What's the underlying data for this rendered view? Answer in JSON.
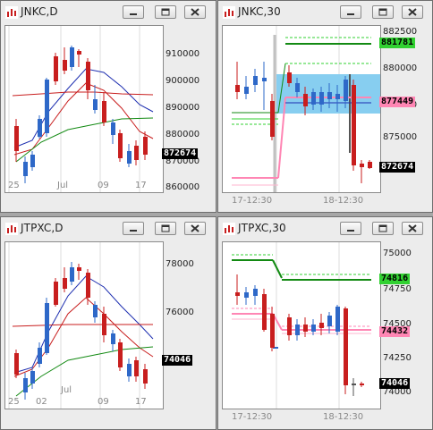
{
  "colors": {
    "bull": "#2e68c8",
    "bear": "#c81e1e",
    "wbg": "#ececec",
    "sma_red": "#c81e1e",
    "sma_blue": "#1e2fb0",
    "sma_green": "#138a13",
    "tag_green": "#31d131",
    "tag_pink": "#ff86b4",
    "tag_black": "#000000",
    "box": "#87cef0"
  },
  "buttons": {
    "minimize_icon": "minimize-icon",
    "restore_icon": "restore-icon",
    "close_icon": "close-icon"
  },
  "windows": [
    {
      "title": "JNKC,D",
      "ticks": [
        "910000",
        "900000",
        "890000",
        "880000",
        "870000",
        "860000"
      ],
      "xlabels": [
        "25",
        "Jul",
        "09",
        "17"
      ],
      "tags": [
        {
          "text": "872674",
          "color": "black"
        }
      ]
    },
    {
      "title": "JNKC,30",
      "ticks": [
        "882500",
        "880000",
        "877500",
        "875000"
      ],
      "xlabels": [
        "17-12:30",
        "18-12:30"
      ],
      "tags": [
        {
          "text": "881781",
          "color": "green"
        },
        {
          "text": "877449",
          "color": "pink"
        },
        {
          "text": "872674",
          "color": "black"
        }
      ]
    },
    {
      "title": "JTPXC,D",
      "ticks": [
        "78000",
        "76000"
      ],
      "xlabels": [
        "25",
        "02",
        "Jul",
        "09",
        "17"
      ],
      "tags": [
        {
          "text": "74046",
          "color": "black"
        }
      ]
    },
    {
      "title": "JTPXC,30",
      "ticks": [
        "75000",
        "74750",
        "74500",
        "74250",
        "74000"
      ],
      "xlabels": [
        "17-12:30",
        "18-12:30"
      ],
      "tags": [
        {
          "text": "74816",
          "color": "green"
        },
        {
          "text": "74432",
          "color": "pink"
        },
        {
          "text": "74046",
          "color": "black"
        }
      ]
    }
  ]
}
